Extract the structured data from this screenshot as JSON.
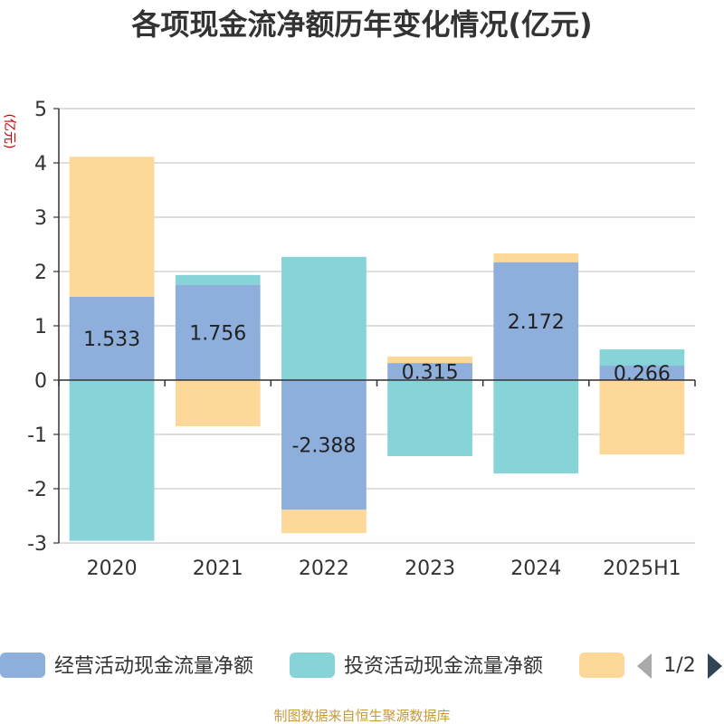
{
  "chart_data": {
    "type": "bar",
    "stacked": true,
    "title": "各项现金流净额历年变化情况(亿元)",
    "ylabel": "(亿元)",
    "categories": [
      "2020",
      "2021",
      "2022",
      "2023",
      "2024",
      "2025H1"
    ],
    "ylim": [
      -3,
      5
    ],
    "yticks": [
      5,
      4,
      3,
      2,
      1,
      0,
      -1,
      -2,
      -3
    ],
    "grid": true,
    "series": [
      {
        "name": "经营活动现金流量净额",
        "color": "#8eaedb",
        "values": [
          1.533,
          1.756,
          -2.388,
          0.315,
          2.172,
          0.266
        ],
        "show_labels": true
      },
      {
        "name": "投资活动现金流量净额",
        "color": "#86d4d7",
        "values": [
          -2.96,
          0.18,
          2.27,
          -1.4,
          -1.72,
          0.3
        ],
        "show_labels": false
      },
      {
        "name": "",
        "color": "#fdd898",
        "values": [
          2.58,
          -0.85,
          -0.43,
          0.12,
          0.16,
          -1.37
        ],
        "show_labels": false
      }
    ]
  },
  "legend": {
    "page": "1/2"
  },
  "footer": "制图数据来自恒生聚源数据库"
}
